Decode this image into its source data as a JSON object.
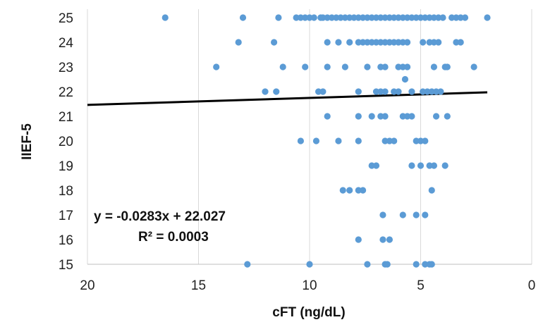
{
  "chart_data": {
    "type": "scatter",
    "title": "",
    "xlabel": "cFT (ng/dL)",
    "ylabel": "IIEF-5",
    "x_reversed": true,
    "xlim": [
      0,
      20
    ],
    "ylim": [
      15,
      25
    ],
    "x_ticks": [
      "20",
      "15",
      "10",
      "5",
      "0"
    ],
    "y_ticks": [
      "15",
      "16",
      "17",
      "18",
      "19",
      "20",
      "21",
      "22",
      "23",
      "24",
      "25"
    ],
    "grid": "vertical",
    "colors": {
      "points": "#5b9bd5",
      "trendline": "#000000",
      "grid": "#d9d9d9"
    },
    "trendline": {
      "slope": -0.0283,
      "intercept": 22.027,
      "x_range": [
        2.0,
        20.0
      ]
    },
    "annotations": {
      "equation": "y = -0.0283x + 22.027",
      "r2": "R² = 0.0003"
    },
    "series": [
      {
        "points": [
          [
            16.5,
            25
          ],
          [
            13.0,
            25
          ],
          [
            11.4,
            25
          ],
          [
            10.6,
            25
          ],
          [
            10.4,
            25
          ],
          [
            10.2,
            25
          ],
          [
            10.0,
            25
          ],
          [
            9.8,
            25
          ],
          [
            9.5,
            25
          ],
          [
            9.4,
            25
          ],
          [
            9.2,
            25
          ],
          [
            9.0,
            25
          ],
          [
            8.8,
            25
          ],
          [
            8.6,
            25
          ],
          [
            8.4,
            25
          ],
          [
            8.2,
            25
          ],
          [
            8.0,
            25
          ],
          [
            7.8,
            25
          ],
          [
            7.6,
            25
          ],
          [
            7.4,
            25
          ],
          [
            7.2,
            25
          ],
          [
            7.0,
            25
          ],
          [
            6.8,
            25
          ],
          [
            6.6,
            25
          ],
          [
            6.4,
            25
          ],
          [
            6.2,
            25
          ],
          [
            6.0,
            25
          ],
          [
            5.8,
            25
          ],
          [
            5.6,
            25
          ],
          [
            5.4,
            25
          ],
          [
            5.2,
            25
          ],
          [
            5.0,
            25
          ],
          [
            4.8,
            25
          ],
          [
            4.6,
            25
          ],
          [
            4.4,
            25
          ],
          [
            4.2,
            25
          ],
          [
            4.0,
            25
          ],
          [
            3.6,
            25
          ],
          [
            3.4,
            25
          ],
          [
            3.2,
            25
          ],
          [
            3.0,
            25
          ],
          [
            2.0,
            25
          ],
          [
            13.2,
            24
          ],
          [
            11.6,
            24
          ],
          [
            9.2,
            24
          ],
          [
            8.7,
            24
          ],
          [
            8.2,
            24
          ],
          [
            7.8,
            24
          ],
          [
            7.6,
            24
          ],
          [
            7.4,
            24
          ],
          [
            7.2,
            24
          ],
          [
            7.0,
            24
          ],
          [
            6.8,
            24
          ],
          [
            6.6,
            24
          ],
          [
            6.4,
            24
          ],
          [
            6.2,
            24
          ],
          [
            6.0,
            24
          ],
          [
            5.8,
            24
          ],
          [
            5.6,
            24
          ],
          [
            4.9,
            24
          ],
          [
            4.6,
            24
          ],
          [
            4.4,
            24
          ],
          [
            4.2,
            24
          ],
          [
            3.4,
            24
          ],
          [
            3.2,
            24
          ],
          [
            14.2,
            23
          ],
          [
            11.2,
            23
          ],
          [
            10.2,
            23
          ],
          [
            9.2,
            23
          ],
          [
            8.4,
            23
          ],
          [
            7.4,
            23
          ],
          [
            6.8,
            23
          ],
          [
            6.6,
            23
          ],
          [
            6.0,
            23
          ],
          [
            5.8,
            23
          ],
          [
            5.6,
            23
          ],
          [
            4.4,
            23
          ],
          [
            3.9,
            23
          ],
          [
            3.8,
            23
          ],
          [
            2.6,
            23
          ],
          [
            5.7,
            22.5
          ],
          [
            12.0,
            22
          ],
          [
            11.5,
            22
          ],
          [
            9.6,
            22
          ],
          [
            9.4,
            22
          ],
          [
            7.8,
            22
          ],
          [
            7.0,
            22
          ],
          [
            6.8,
            22
          ],
          [
            6.6,
            22
          ],
          [
            6.2,
            22
          ],
          [
            6.0,
            22
          ],
          [
            5.4,
            22
          ],
          [
            4.9,
            22
          ],
          [
            4.7,
            22
          ],
          [
            4.5,
            22
          ],
          [
            4.3,
            22
          ],
          [
            4.1,
            22
          ],
          [
            9.2,
            21
          ],
          [
            7.8,
            21
          ],
          [
            7.2,
            21
          ],
          [
            6.8,
            21
          ],
          [
            6.6,
            21
          ],
          [
            5.8,
            21
          ],
          [
            5.6,
            21
          ],
          [
            5.4,
            21
          ],
          [
            4.3,
            21
          ],
          [
            3.8,
            21
          ],
          [
            10.4,
            20
          ],
          [
            9.7,
            20
          ],
          [
            8.7,
            20
          ],
          [
            7.8,
            20
          ],
          [
            6.6,
            20
          ],
          [
            6.4,
            20
          ],
          [
            6.2,
            20
          ],
          [
            5.2,
            20
          ],
          [
            5.0,
            20
          ],
          [
            4.8,
            20
          ],
          [
            7.2,
            19
          ],
          [
            7.0,
            19
          ],
          [
            5.4,
            19
          ],
          [
            5.0,
            19
          ],
          [
            4.6,
            19
          ],
          [
            4.4,
            19
          ],
          [
            3.9,
            19
          ],
          [
            8.5,
            18
          ],
          [
            8.2,
            18
          ],
          [
            7.8,
            18
          ],
          [
            7.6,
            18
          ],
          [
            4.5,
            18
          ],
          [
            6.7,
            17
          ],
          [
            5.8,
            17
          ],
          [
            5.2,
            17
          ],
          [
            4.8,
            17
          ],
          [
            7.8,
            16
          ],
          [
            6.7,
            16
          ],
          [
            6.4,
            16
          ],
          [
            12.8,
            15
          ],
          [
            10.0,
            15
          ],
          [
            7.4,
            15
          ],
          [
            6.6,
            15
          ],
          [
            6.5,
            15
          ],
          [
            5.2,
            15
          ],
          [
            4.8,
            15
          ],
          [
            4.6,
            15
          ],
          [
            4.5,
            15
          ]
        ]
      }
    ]
  }
}
